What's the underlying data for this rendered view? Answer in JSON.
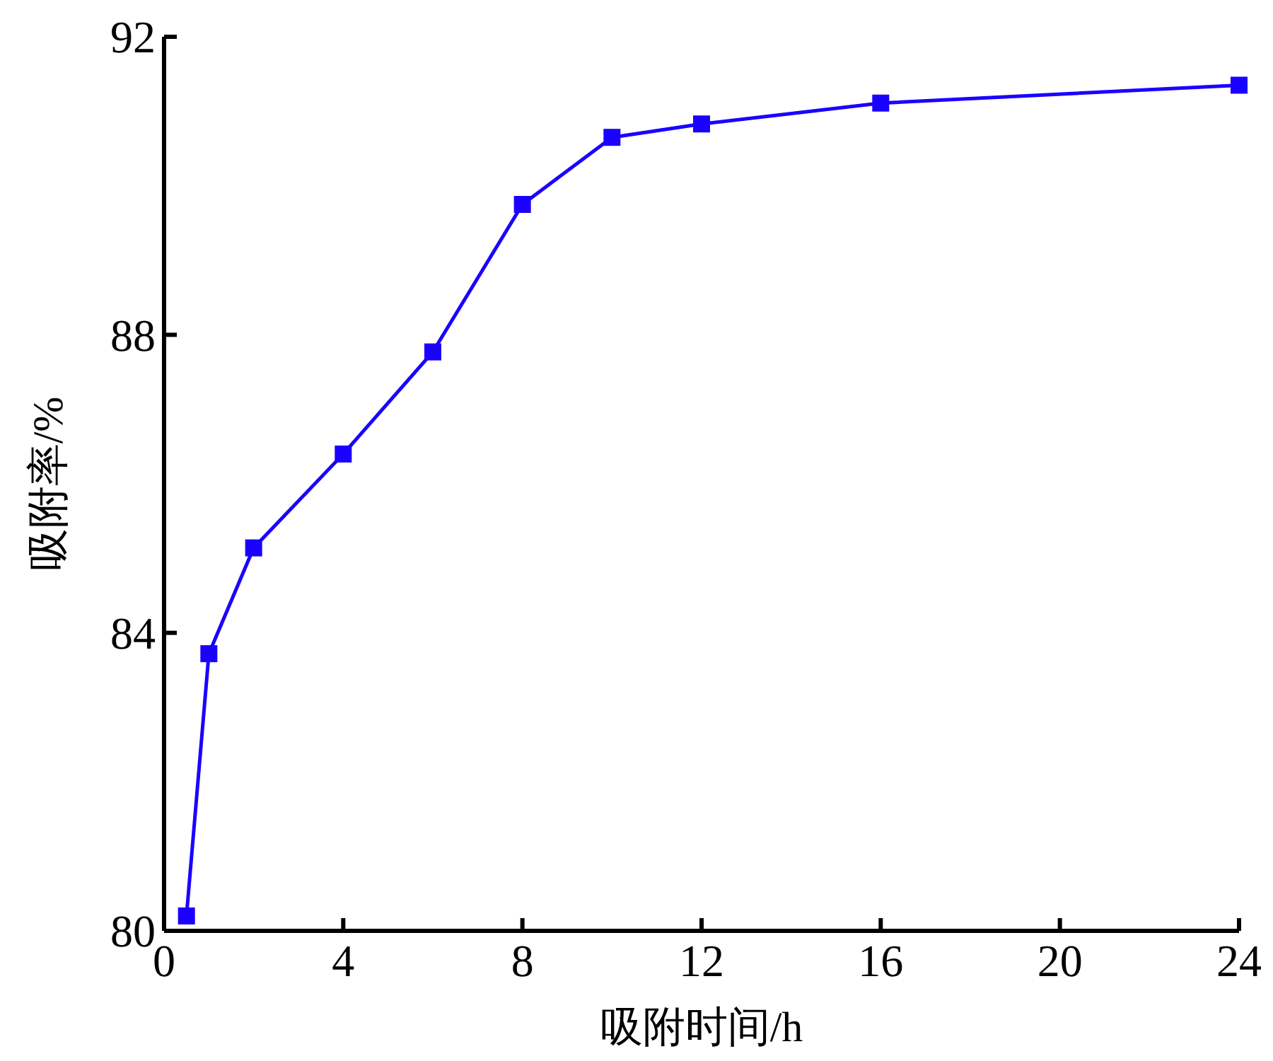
{
  "chart_data": {
    "type": "line",
    "xlabel": "吸附时间/h",
    "ylabel": "吸附率/%",
    "x": [
      0.5,
      1,
      2,
      4,
      6,
      8,
      10,
      12,
      16,
      24
    ],
    "series": [
      {
        "color": "#1a00ff",
        "values": [
          80.2,
          83.72,
          85.14,
          86.4,
          87.77,
          89.75,
          90.65,
          90.83,
          91.11,
          91.35
        ]
      }
    ],
    "xlim": [
      0,
      24
    ],
    "xticks": [
      0,
      4,
      8,
      12,
      16,
      20,
      24
    ],
    "ylim": [
      80,
      92
    ],
    "yticks": [
      80,
      84,
      88,
      92
    ],
    "marker": "square",
    "line_style": "solid"
  }
}
